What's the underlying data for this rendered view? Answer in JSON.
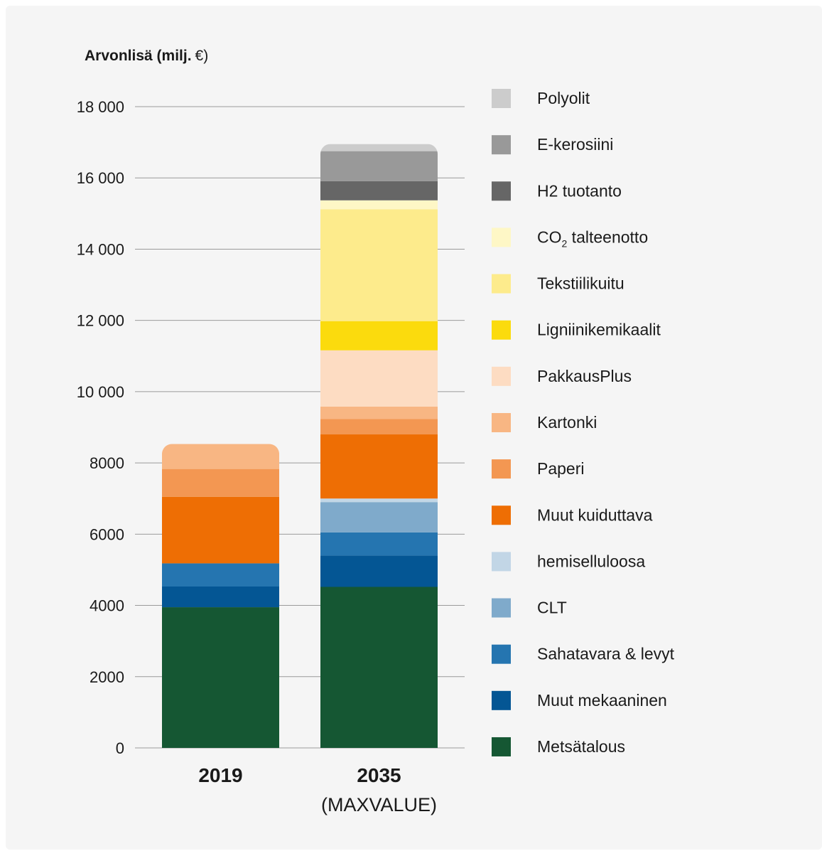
{
  "chart_data": {
    "type": "bar",
    "stacked": true,
    "ylabel_bold": "Arvonlisä (milj.",
    "ylabel_unit": "€)",
    "ylim": [
      0,
      18000
    ],
    "yticks": [
      0,
      2000,
      4000,
      6000,
      8000,
      10000,
      12000,
      14000,
      16000,
      18000
    ],
    "ytick_labels": [
      "0",
      "2000",
      "4000",
      "6000",
      "8000",
      "10 000",
      "12 000",
      "14 000",
      "16 000",
      "18 000"
    ],
    "grid": true,
    "legend_position": "right",
    "categories": [
      "2019",
      "2035"
    ],
    "category_sublabels": [
      "",
      "(MAXVALUE)"
    ],
    "series": [
      {
        "name": "Metsätalous",
        "color": "#155733",
        "values": [
          3950,
          4520
        ]
      },
      {
        "name": "Muut mekaaninen",
        "color": "#045694",
        "values": [
          580,
          880
        ]
      },
      {
        "name": "Sahatavara & levyt",
        "color": "#2575b0",
        "values": [
          650,
          650
        ]
      },
      {
        "name": "CLT",
        "color": "#7faacb",
        "values": [
          0,
          850
        ]
      },
      {
        "name": "hemiselluloosa",
        "color": "#c2d6e6",
        "values": [
          0,
          100
        ]
      },
      {
        "name": "Muut kuiduttava",
        "color": "#ee6e04",
        "values": [
          1870,
          1800
        ]
      },
      {
        "name": "Paperi",
        "color": "#f39752",
        "values": [
          780,
          430
        ]
      },
      {
        "name": "Kartonki",
        "color": "#f8b683",
        "values": [
          700,
          350
        ]
      },
      {
        "name": "PakkausPlus",
        "color": "#fddcc2",
        "values": [
          0,
          1580
        ]
      },
      {
        "name": "Ligniinikemikaalit",
        "color": "#fbdb0d",
        "values": [
          0,
          820
        ]
      },
      {
        "name": "Tekstiilikuitu",
        "color": "#fdeb8c",
        "values": [
          0,
          3140
        ]
      },
      {
        "name": "CO2 talteenotto",
        "color": "#fef7c6",
        "values": [
          0,
          250
        ]
      },
      {
        "name": "H2 tuotanto",
        "color": "#666666",
        "values": [
          0,
          540
        ]
      },
      {
        "name": "E-kerosiini",
        "color": "#999999",
        "values": [
          0,
          840
        ]
      },
      {
        "name": "Polyolit",
        "color": "#cccccc",
        "values": [
          0,
          200
        ]
      }
    ],
    "legend_order": [
      "Polyolit",
      "E-kerosiini",
      "H2 tuotanto",
      "CO2 talteenotto",
      "Tekstiilikuitu",
      "Ligniinikemikaalit",
      "PakkausPlus",
      "Kartonki",
      "Paperi",
      "Muut kuiduttava",
      "hemiselluloosa",
      "CLT",
      "Sahatavara & levyt",
      "Muut mekaaninen",
      "Metsätalous"
    ]
  }
}
